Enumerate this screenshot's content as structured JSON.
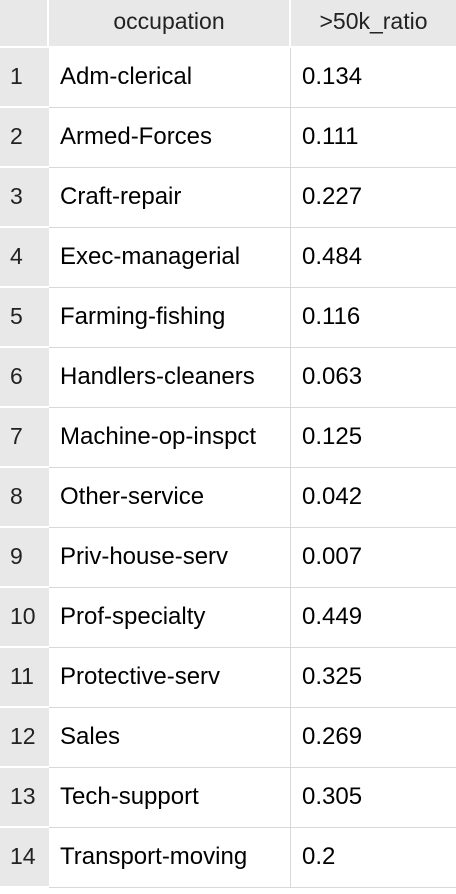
{
  "table": {
    "columns": [
      "occupation",
      ">50k_ratio"
    ],
    "rows": [
      {
        "index": "1",
        "occupation": "Adm-clerical",
        "ratio": "0.134"
      },
      {
        "index": "2",
        "occupation": "Armed-Forces",
        "ratio": "0.111"
      },
      {
        "index": "3",
        "occupation": "Craft-repair",
        "ratio": "0.227"
      },
      {
        "index": "4",
        "occupation": "Exec-managerial",
        "ratio": "0.484"
      },
      {
        "index": "5",
        "occupation": "Farming-fishing",
        "ratio": "0.116"
      },
      {
        "index": "6",
        "occupation": "Handlers-cleaners",
        "ratio": "0.063"
      },
      {
        "index": "7",
        "occupation": "Machine-op-inspct",
        "ratio": "0.125"
      },
      {
        "index": "8",
        "occupation": "Other-service",
        "ratio": "0.042"
      },
      {
        "index": "9",
        "occupation": "Priv-house-serv",
        "ratio": "0.007"
      },
      {
        "index": "10",
        "occupation": "Prof-specialty",
        "ratio": "0.449"
      },
      {
        "index": "11",
        "occupation": "Protective-serv",
        "ratio": "0.325"
      },
      {
        "index": "12",
        "occupation": "Sales",
        "ratio": "0.269"
      },
      {
        "index": "13",
        "occupation": "Tech-support",
        "ratio": "0.305"
      },
      {
        "index": "14",
        "occupation": "Transport-moving",
        "ratio": "0.2"
      }
    ]
  }
}
